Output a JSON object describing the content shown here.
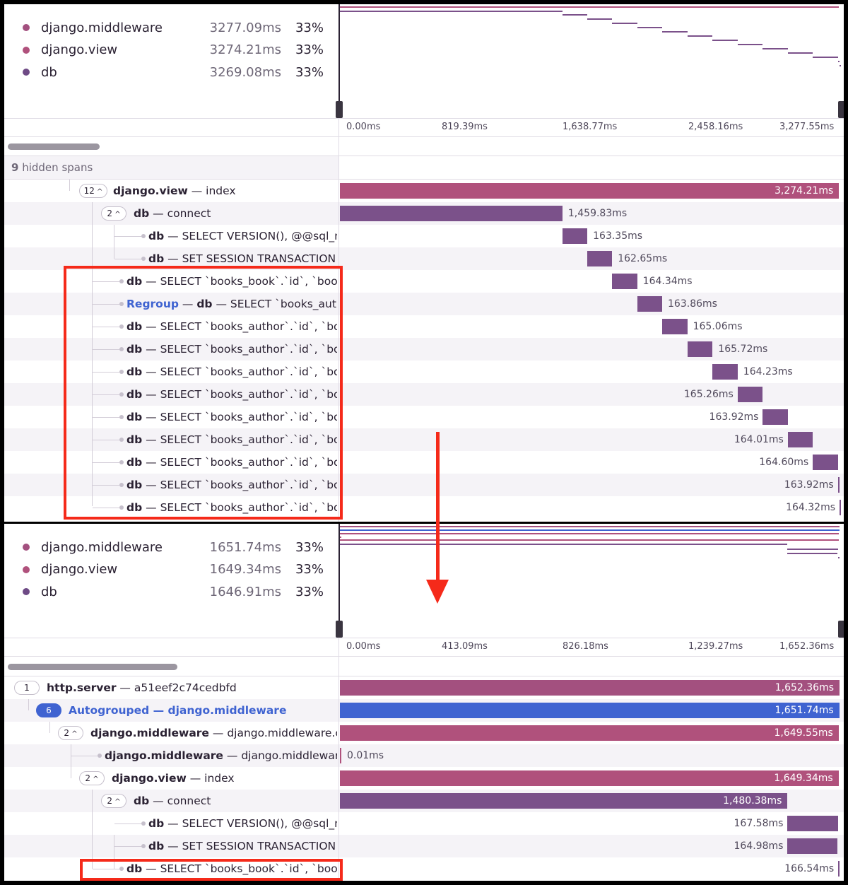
{
  "colors": {
    "middleware": "#a3507f",
    "view": "#b0517c",
    "db": "#7b518a",
    "http": "#a3507f",
    "autogroup": "#3f63d1",
    "highlight": "#f52a1a"
  },
  "top": {
    "legend": [
      {
        "name": "django.middleware",
        "duration": "3277.09ms",
        "percent": "33%",
        "color": "#a3507f"
      },
      {
        "name": "django.view",
        "duration": "3274.21ms",
        "percent": "33%",
        "color": "#b0517c"
      },
      {
        "name": "db",
        "duration": "3269.08ms",
        "percent": "33%",
        "color": "#6e4a85"
      }
    ],
    "ticks": [
      "0.00ms",
      "819.39ms",
      "1,638.77ms",
      "2,458.16ms",
      "3,277.55ms"
    ],
    "hidden_count": "9",
    "hidden_label": "hidden spans",
    "total_ms": 3277.55,
    "rows": [
      {
        "kind": "group",
        "count": "12",
        "op": "django.view",
        "desc": "index",
        "start": 0,
        "duration": 3274.21,
        "label": "3,274.21ms",
        "color": "#b0517c",
        "in_bar": true
      },
      {
        "kind": "group",
        "count": "2",
        "op": "db",
        "desc": "connect",
        "start": 0,
        "duration": 1459.83,
        "label": "1,459.83ms",
        "color": "#7b518a"
      },
      {
        "kind": "leaf",
        "op": "db",
        "desc": "SELECT VERSION(), @@sql_m",
        "start": 1459.83,
        "duration": 163.35,
        "label": "163.35ms",
        "color": "#7b518a"
      },
      {
        "kind": "leaf",
        "op": "db",
        "desc": "SET SESSION TRANSACTION",
        "start": 1623.18,
        "duration": 162.65,
        "label": "162.65ms",
        "color": "#7b518a"
      },
      {
        "kind": "leaf",
        "op": "db",
        "desc": "SELECT `books_book`.`id`, `books",
        "start": 1785.83,
        "duration": 164.34,
        "label": "164.34ms",
        "color": "#7b518a"
      },
      {
        "kind": "regroup",
        "prefix": "Regroup",
        "op": "db",
        "desc": "SELECT `books_autho",
        "start": 1950.17,
        "duration": 163.86,
        "label": "163.86ms",
        "color": "#7b518a"
      },
      {
        "kind": "leaf",
        "op": "db",
        "desc": "SELECT `books_author`.`id`, `boo",
        "start": 2114.03,
        "duration": 165.06,
        "label": "165.06ms",
        "color": "#7b518a"
      },
      {
        "kind": "leaf",
        "op": "db",
        "desc": "SELECT `books_author`.`id`, `boo",
        "start": 2279.09,
        "duration": 165.72,
        "label": "165.72ms",
        "color": "#7b518a"
      },
      {
        "kind": "leaf",
        "op": "db",
        "desc": "SELECT `books_author`.`id`, `boo",
        "start": 2444.81,
        "duration": 164.23,
        "label": "164.23ms",
        "color": "#7b518a"
      },
      {
        "kind": "leaf",
        "op": "db",
        "desc": "SELECT `books_author`.`id`, `boo",
        "start": 2609.04,
        "duration": 165.26,
        "label": "165.26ms",
        "color": "#7b518a",
        "label_left": true
      },
      {
        "kind": "leaf",
        "op": "db",
        "desc": "SELECT `books_author`.`id`, `boo",
        "start": 2774.3,
        "duration": 163.92,
        "label": "163.92ms",
        "color": "#7b518a",
        "label_left": true
      },
      {
        "kind": "leaf",
        "op": "db",
        "desc": "SELECT `books_author`.`id`, `boo",
        "start": 2938.22,
        "duration": 164.01,
        "label": "164.01ms",
        "color": "#7b518a",
        "label_left": true
      },
      {
        "kind": "leaf",
        "op": "db",
        "desc": "SELECT `books_author`.`id`, `boo",
        "start": 3102.23,
        "duration": 164.6,
        "label": "164.60ms",
        "color": "#7b518a",
        "label_left": true
      },
      {
        "kind": "leaf",
        "op": "db",
        "desc": "SELECT `books_author`.`id`, `boo",
        "start": 3266.83,
        "duration": 163.92,
        "label": "163.92ms",
        "color": "#7b518a",
        "label_left": true
      },
      {
        "kind": "leaf",
        "op": "db",
        "desc": "SELECT `books_author`.`id`, `boo",
        "start": 3430.75,
        "duration": 164.32,
        "label": "164.32ms",
        "color": "#7b518a",
        "label_left": true
      }
    ]
  },
  "bottom": {
    "legend": [
      {
        "name": "django.middleware",
        "duration": "1651.74ms",
        "percent": "33%",
        "color": "#a3507f"
      },
      {
        "name": "django.view",
        "duration": "1649.34ms",
        "percent": "33%",
        "color": "#b0517c"
      },
      {
        "name": "db",
        "duration": "1646.91ms",
        "percent": "33%",
        "color": "#6e4a85"
      }
    ],
    "ticks": [
      "0.00ms",
      "413.09ms",
      "826.18ms",
      "1,239.27ms",
      "1,652.36ms"
    ],
    "total_ms": 1652.36,
    "rows": [
      {
        "kind": "group",
        "count": "1",
        "op": "http.server",
        "desc": "a51eef2c74cedbfd",
        "start": 0,
        "duration": 1652.36,
        "label": "1,652.36ms",
        "color": "#a3507f",
        "in_bar": true
      },
      {
        "kind": "autogroup",
        "count": "6",
        "op": "Autogrouped",
        "desc": "django.middleware",
        "start": 0,
        "duration": 1651.74,
        "label": "1,651.74ms",
        "color": "#3f63d1",
        "in_bar": true
      },
      {
        "kind": "group",
        "count": "2",
        "op": "django.middleware",
        "desc": "django.middleware.clickj",
        "start": 0,
        "duration": 1649.55,
        "label": "1,649.55ms",
        "color": "#b0517c",
        "in_bar": true
      },
      {
        "kind": "leaf",
        "op": "django.middleware",
        "desc": "django.middleware.c",
        "start": 0,
        "duration": 0.01,
        "label": "0.01ms",
        "color": "#b0517c"
      },
      {
        "kind": "group",
        "count": "2",
        "op": "django.view",
        "desc": "index",
        "start": 0,
        "duration": 1649.34,
        "label": "1,649.34ms",
        "color": "#b0517c",
        "in_bar": true
      },
      {
        "kind": "group",
        "count": "2",
        "op": "db",
        "desc": "connect",
        "start": 0,
        "duration": 1480.38,
        "label": "1,480.38ms",
        "color": "#7b518a",
        "in_bar": true
      },
      {
        "kind": "leaf",
        "op": "db",
        "desc": "SELECT VERSION(), @@sql_m",
        "start": 1480.38,
        "duration": 167.58,
        "label": "167.58ms",
        "color": "#7b518a",
        "label_left": true
      },
      {
        "kind": "leaf",
        "op": "db",
        "desc": "SET SESSION TRANSACTION",
        "start": 1480.38,
        "duration": 164.98,
        "label": "164.98ms",
        "color": "#7b518a",
        "label_left": true
      },
      {
        "kind": "leaf",
        "op": "db",
        "desc": "SELECT `books_book`.`id`, `book",
        "start": 1647.96,
        "duration": 166.54,
        "label": "166.54ms",
        "color": "#7b518a",
        "label_left": true
      }
    ]
  }
}
